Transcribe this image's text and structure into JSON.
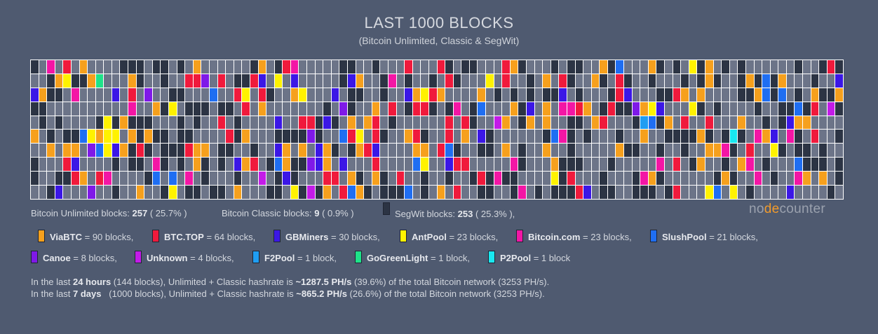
{
  "title": "LAST 1000 BLOCKS",
  "subtitle": "(Bitcoin Unlimited, Classic & SegWit)",
  "logo": {
    "part1": "no",
    "part2": "de",
    "part3": "counter"
  },
  "summary": {
    "unlimited_label": "Bitcoin Unlimited blocks:",
    "unlimited_count": "257",
    "unlimited_pct": "( 25.7% )",
    "classic_label": "Bitcoin Classic blocks:",
    "classic_count": "9",
    "classic_pct": "( 0.9% )",
    "segwit_label": "SegWit blocks:",
    "segwit_count": "253",
    "segwit_pct": "( 25.3% ),",
    "segwit_color": "#2c3444"
  },
  "pools": [
    {
      "name": "ViaBTC",
      "count": "= 90 blocks,",
      "color": "#f6a01d"
    },
    {
      "name": "BTC.TOP",
      "count": "= 64 blocks,",
      "color": "#f01a3c"
    },
    {
      "name": "GBMiners",
      "count": "= 30 blocks,",
      "color": "#3b17e6"
    },
    {
      "name": "AntPool",
      "count": "= 23 blocks,",
      "color": "#fff200"
    },
    {
      "name": "Bitcoin.com",
      "count": "= 23 blocks,",
      "color": "#f316a5"
    },
    {
      "name": "SlushPool",
      "count": "= 21 blocks,",
      "color": "#1f6ef2"
    },
    {
      "name": "Canoe",
      "count": "= 8 blocks,",
      "color": "#7f19e8"
    },
    {
      "name": "Unknown",
      "count": "= 4 blocks,",
      "color": "#c31be8"
    },
    {
      "name": "F2Pool",
      "count": "= 1 block,",
      "color": "#1f9df2"
    },
    {
      "name": "GoGreenLight",
      "count": "= 1 block,",
      "color": "#1ee389"
    },
    {
      "name": "P2Pool",
      "count": "= 1 block",
      "color": "#19e8f0"
    }
  ],
  "other_color": "#6c7488",
  "hashrate": {
    "line1": {
      "pre": "In the last ",
      "period": "24 hours",
      "mid": " (144 blocks), Unlimited + Classic hashrate is ",
      "rate": "~1287.5 PH/s",
      "post": " (39.6%) of the total Bitcoin network (3253 PH/s)."
    },
    "line2": {
      "pre": "In the last ",
      "period": "7 days",
      "mid": "   (1000 blocks), Unlimited + Classic hashrate is ",
      "rate": "~865.2 PH/s",
      "post": " (26.6%) of the total Bitcoin network (3253 PH/s)."
    }
  }
}
